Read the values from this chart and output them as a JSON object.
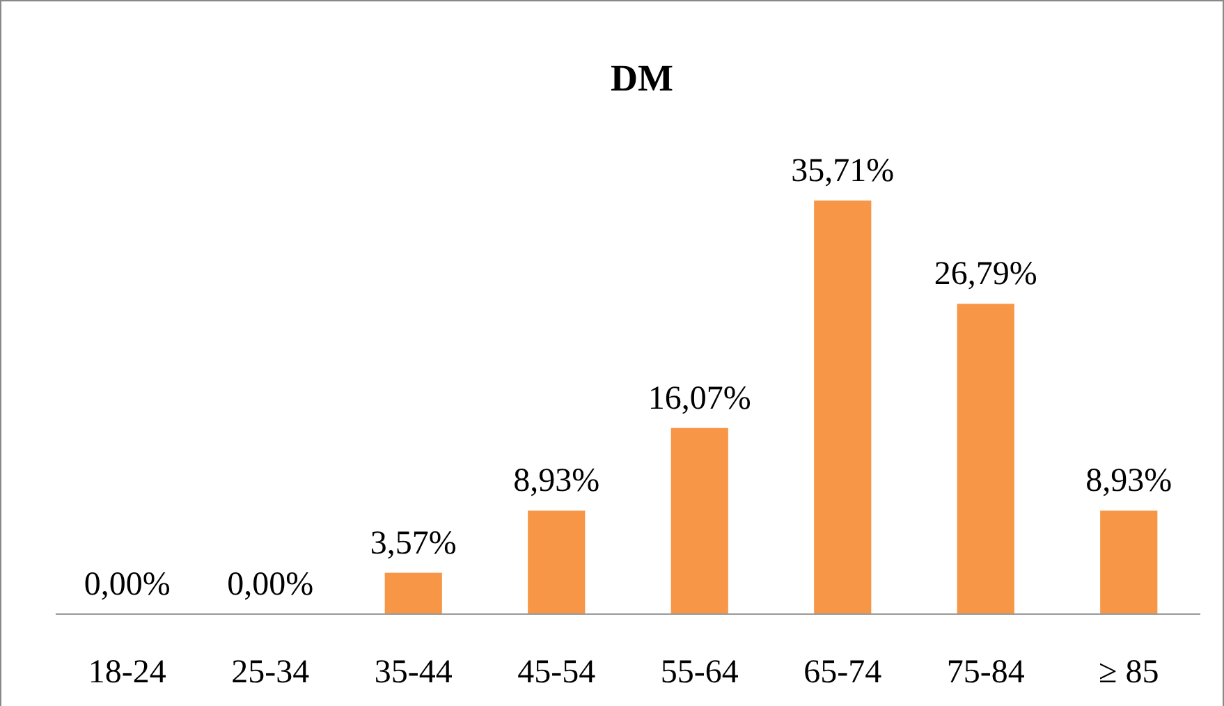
{
  "chart_data": {
    "type": "bar",
    "title": "DM",
    "categories": [
      "18-24",
      "25-34",
      "35-44",
      "45-54",
      "55-64",
      "65-74",
      "75-84",
      "≥ 85"
    ],
    "values": [
      0,
      0,
      3.57,
      8.93,
      16.07,
      35.71,
      26.79,
      8.93
    ],
    "value_labels": [
      "0,00%",
      "0,00%",
      "3,57%",
      "8,93%",
      "16,07%",
      "35,71%",
      "26,79%",
      "8,93%"
    ],
    "color": "#f79646"
  }
}
